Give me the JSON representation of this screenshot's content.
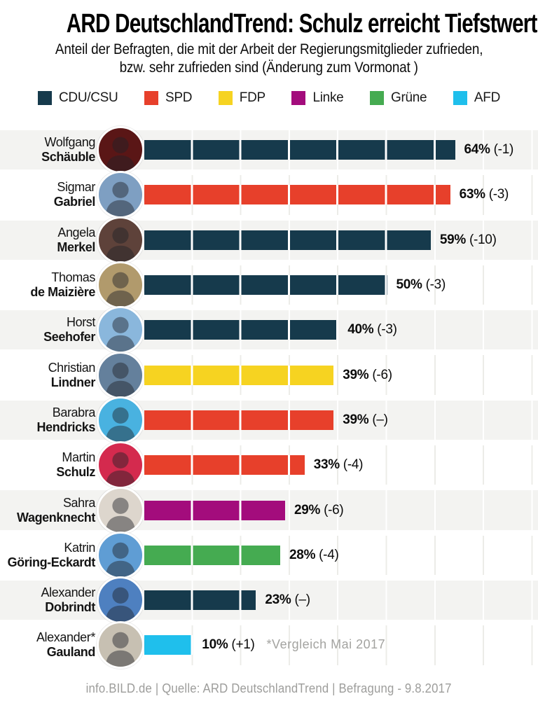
{
  "page": {
    "title": "ARD DeutschlandTrend: Schulz erreicht Tiefstwert",
    "subtitle_line1": "Anteil der Befragten, die mit der Arbeit der Regierungsmitglieder zufrieden,",
    "subtitle_line2": "bzw. sehr zufrieden sind (Änderung zum Vormonat )",
    "footer": "info.BILD.de | Quelle: ARD DeutschlandTrend | Befragung - 9.8.2017"
  },
  "legend": {
    "items": [
      {
        "label": "CDU/CSU",
        "color": "#163a4c"
      },
      {
        "label": "SPD",
        "color": "#e7402b"
      },
      {
        "label": "FDP",
        "color": "#f6d321"
      },
      {
        "label": "Linke",
        "color": "#a30c7c"
      },
      {
        "label": "Grüne",
        "color": "#45ab51"
      },
      {
        "label": "AFD",
        "color": "#1fbfec"
      }
    ]
  },
  "chart_data": {
    "type": "bar",
    "orientation": "horizontal",
    "value_unit": "%",
    "xlim": [
      0,
      100
    ],
    "segment_interval": 10,
    "grid": true,
    "legend_position": "top",
    "title": "ARD DeutschlandTrend: Schulz erreicht Tiefstwert",
    "footnote": "*Vergleich Mai 2017",
    "rows": [
      {
        "name_line1": "Wolfgang",
        "name_line2": "Schäuble",
        "party": "CDU/CSU",
        "value": 64,
        "change": "(-1)",
        "avatar_bg": "#5a1616",
        "note": ""
      },
      {
        "name_line1": "Sigmar",
        "name_line2": "Gabriel",
        "party": "SPD",
        "value": 63,
        "change": "(-3)",
        "avatar_bg": "#7e9fc2",
        "note": ""
      },
      {
        "name_line1": "Angela",
        "name_line2": "Merkel",
        "party": "CDU/CSU",
        "value": 59,
        "change": "(-10)",
        "avatar_bg": "#5e423a",
        "note": ""
      },
      {
        "name_line1": "Thomas",
        "name_line2": "de Maizière",
        "party": "CDU/CSU",
        "value": 50,
        "change": "(-3)",
        "avatar_bg": "#b19a6c",
        "note": ""
      },
      {
        "name_line1": "Horst",
        "name_line2": "Seehofer",
        "party": "CDU/CSU",
        "value": 40,
        "change": "(-3)",
        "avatar_bg": "#8ab7dc",
        "note": ""
      },
      {
        "name_line1": "Christian",
        "name_line2": "Lindner",
        "party": "FDP",
        "value": 39,
        "change": "(-6)",
        "avatar_bg": "#64809c",
        "note": ""
      },
      {
        "name_line1": "Barabra",
        "name_line2": "Hendricks",
        "party": "SPD",
        "value": 39,
        "change": "(–)",
        "avatar_bg": "#49b2e0",
        "note": ""
      },
      {
        "name_line1": "Martin",
        "name_line2": "Schulz",
        "party": "SPD",
        "value": 33,
        "change": "(-4)",
        "avatar_bg": "#d42a4e",
        "note": ""
      },
      {
        "name_line1": "Sahra",
        "name_line2": "Wagenknecht",
        "party": "Linke",
        "value": 29,
        "change": "(-6)",
        "avatar_bg": "#ddd6cd",
        "note": ""
      },
      {
        "name_line1": "Katrin",
        "name_line2": "Göring-Eckardt",
        "party": "Grüne",
        "value": 28,
        "change": "(-4)",
        "avatar_bg": "#5f9dd4",
        "note": ""
      },
      {
        "name_line1": "Alexander",
        "name_line2": "Dobrindt",
        "party": "CDU/CSU",
        "value": 23,
        "change": "(–)",
        "avatar_bg": "#4e80c0",
        "note": ""
      },
      {
        "name_line1": "Alexander*",
        "name_line2": "Gauland",
        "party": "AFD",
        "value": 10,
        "change": "(+1)",
        "avatar_bg": "#c7c0b2",
        "note": "*Vergleich Mai 2017"
      }
    ]
  }
}
